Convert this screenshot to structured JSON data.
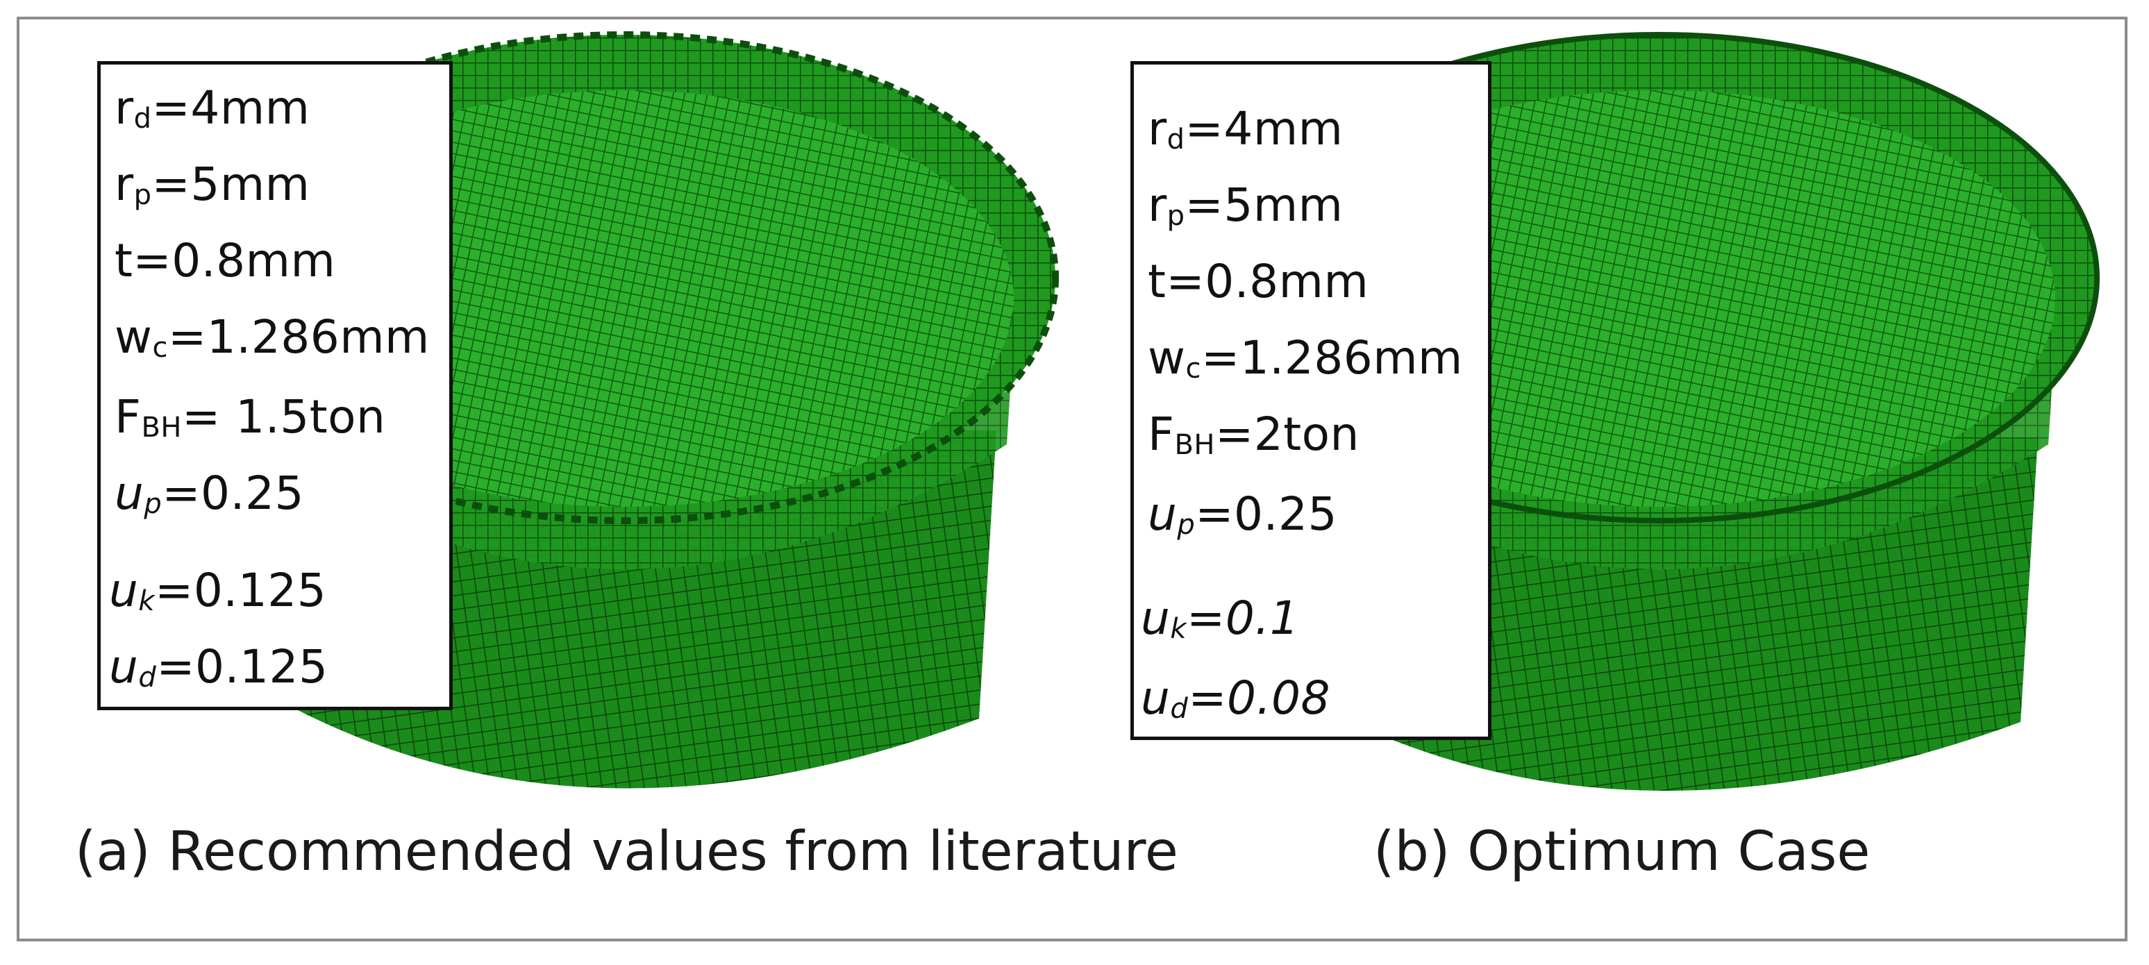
{
  "panels": [
    {
      "params": [
        {
          "sym": "r",
          "sub": "d",
          "val": "=4mm"
        },
        {
          "sym": "r",
          "sub": "p",
          "val": "=5mm"
        },
        {
          "sym": "t",
          "sub": "",
          "val": "=0.8mm"
        },
        {
          "sym": "w",
          "sub": "c",
          "val": "=1.286mm"
        },
        {
          "sym": "F",
          "sub": "BH",
          "val": "= 1.5ton"
        },
        {
          "sym": "u",
          "sub": "p",
          "val": "=0.25"
        },
        {
          "sym": "u",
          "sub": "k",
          "val": "=0.125"
        },
        {
          "sym": "u",
          "sub": "d",
          "val": "=0.125"
        }
      ],
      "caption": "(a) Recommended values from literature"
    },
    {
      "params": [
        {
          "sym": "r",
          "sub": "d",
          "val": "=4mm"
        },
        {
          "sym": "r",
          "sub": "p",
          "val": "=5mm"
        },
        {
          "sym": "t",
          "sub": "",
          "val": "=0.8mm"
        },
        {
          "sym": "w",
          "sub": "c",
          "val": "=1.286mm"
        },
        {
          "sym": "F",
          "sub": "BH",
          "val": "=2ton"
        },
        {
          "sym": "u",
          "sub": "p",
          "val": "=0.25"
        },
        {
          "sym": "u",
          "sub": "k",
          "val": "=0.1"
        },
        {
          "sym": "u",
          "sub": "d",
          "val": "=0.08"
        }
      ],
      "caption": "(b) Optimum Case"
    }
  ],
  "colors": {
    "mesh_green": "#1f9a1f",
    "mesh_dark": "#0c4f0c",
    "frame": "#8c8c8c"
  }
}
